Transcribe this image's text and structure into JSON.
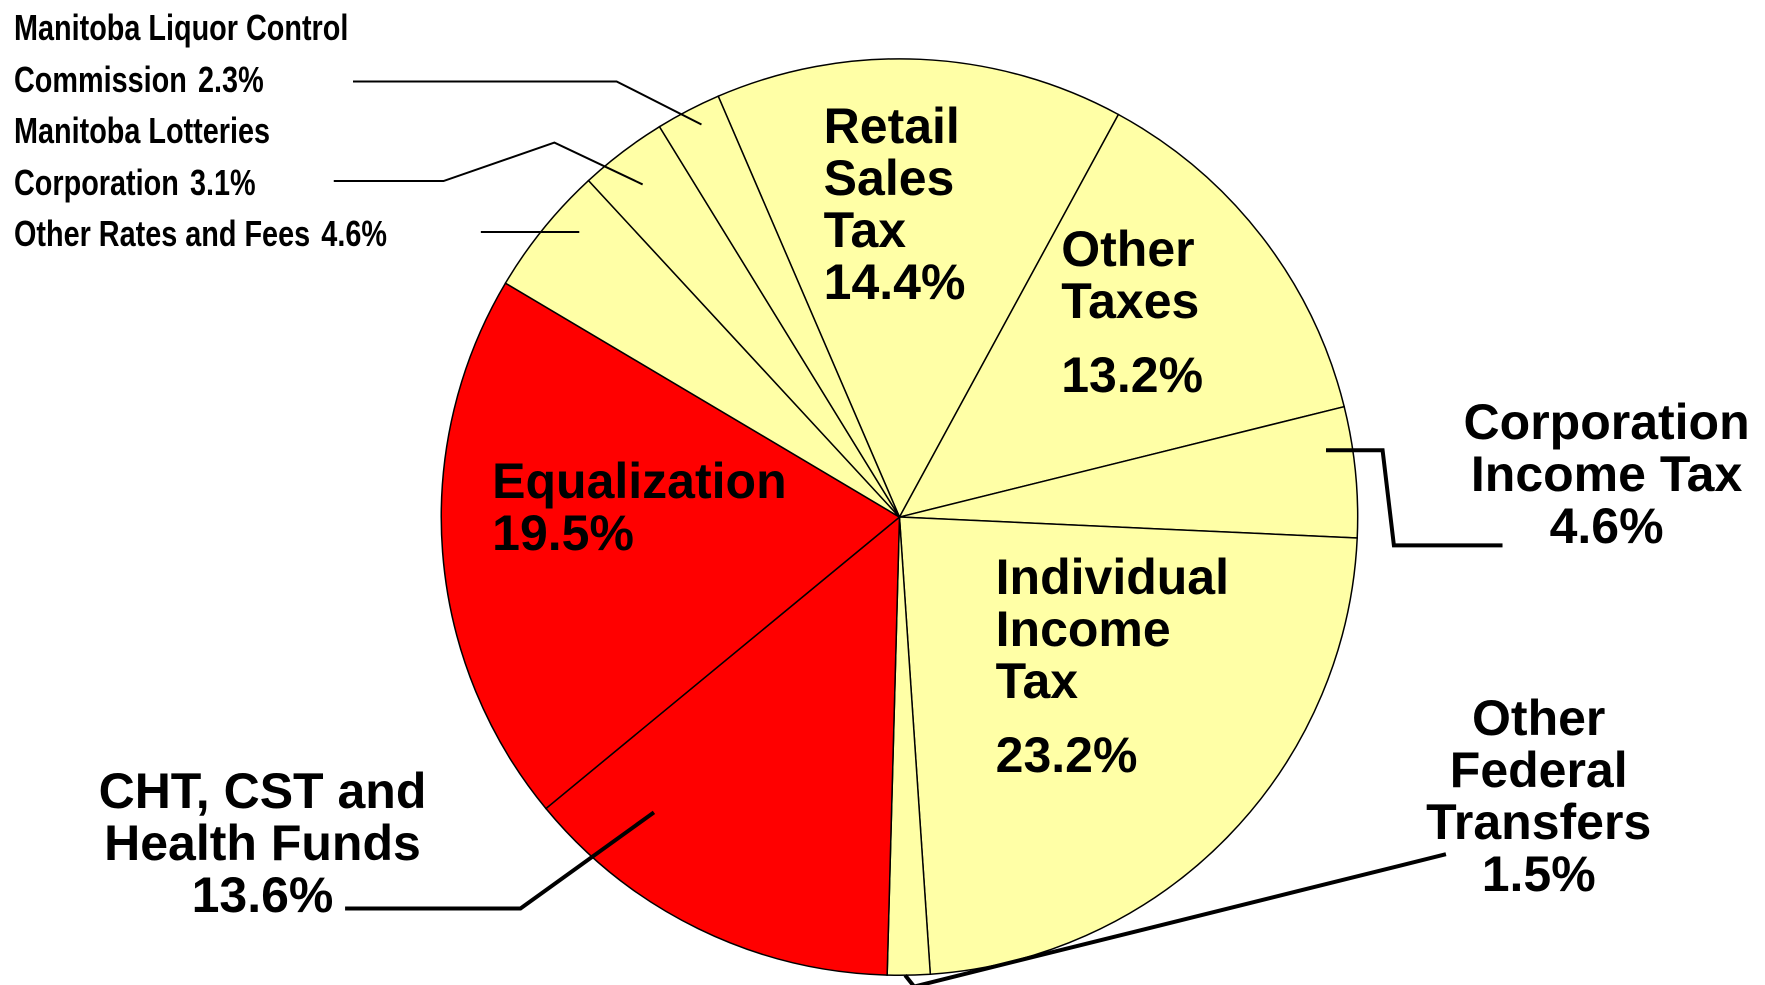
{
  "chart_data": {
    "type": "pie",
    "categories": [
      "Retail\nSales\nTax",
      "Other\nTaxes",
      "Corporation\nIncome Tax",
      "Individual\nIncome\nTax",
      "Other Federal\nTransfers",
      "CHT, CST and\nHealth Funds",
      "Equalization",
      "Other Rates and Fees",
      "Manitoba Lotteries\nCorporation",
      "Manitoba Liquor Control\nCommission"
    ],
    "values": [
      14.4,
      13.2,
      4.6,
      23.2,
      1.5,
      13.6,
      19.5,
      4.6,
      3.1,
      2.3
    ],
    "value_labels": [
      "14.4%",
      "13.2%",
      "4.6%",
      "23.2%",
      "1.5%",
      "13.6%",
      "19.5%",
      "4.6%",
      "3.1%",
      "2.3%"
    ],
    "colors": [
      "#ffffa6",
      "#ffffa6",
      "#ffffa6",
      "#ffffa6",
      "#ffffa6",
      "#ff0000",
      "#ff0000",
      "#ffffa6",
      "#ffffa6",
      "#ffffa6"
    ]
  }
}
